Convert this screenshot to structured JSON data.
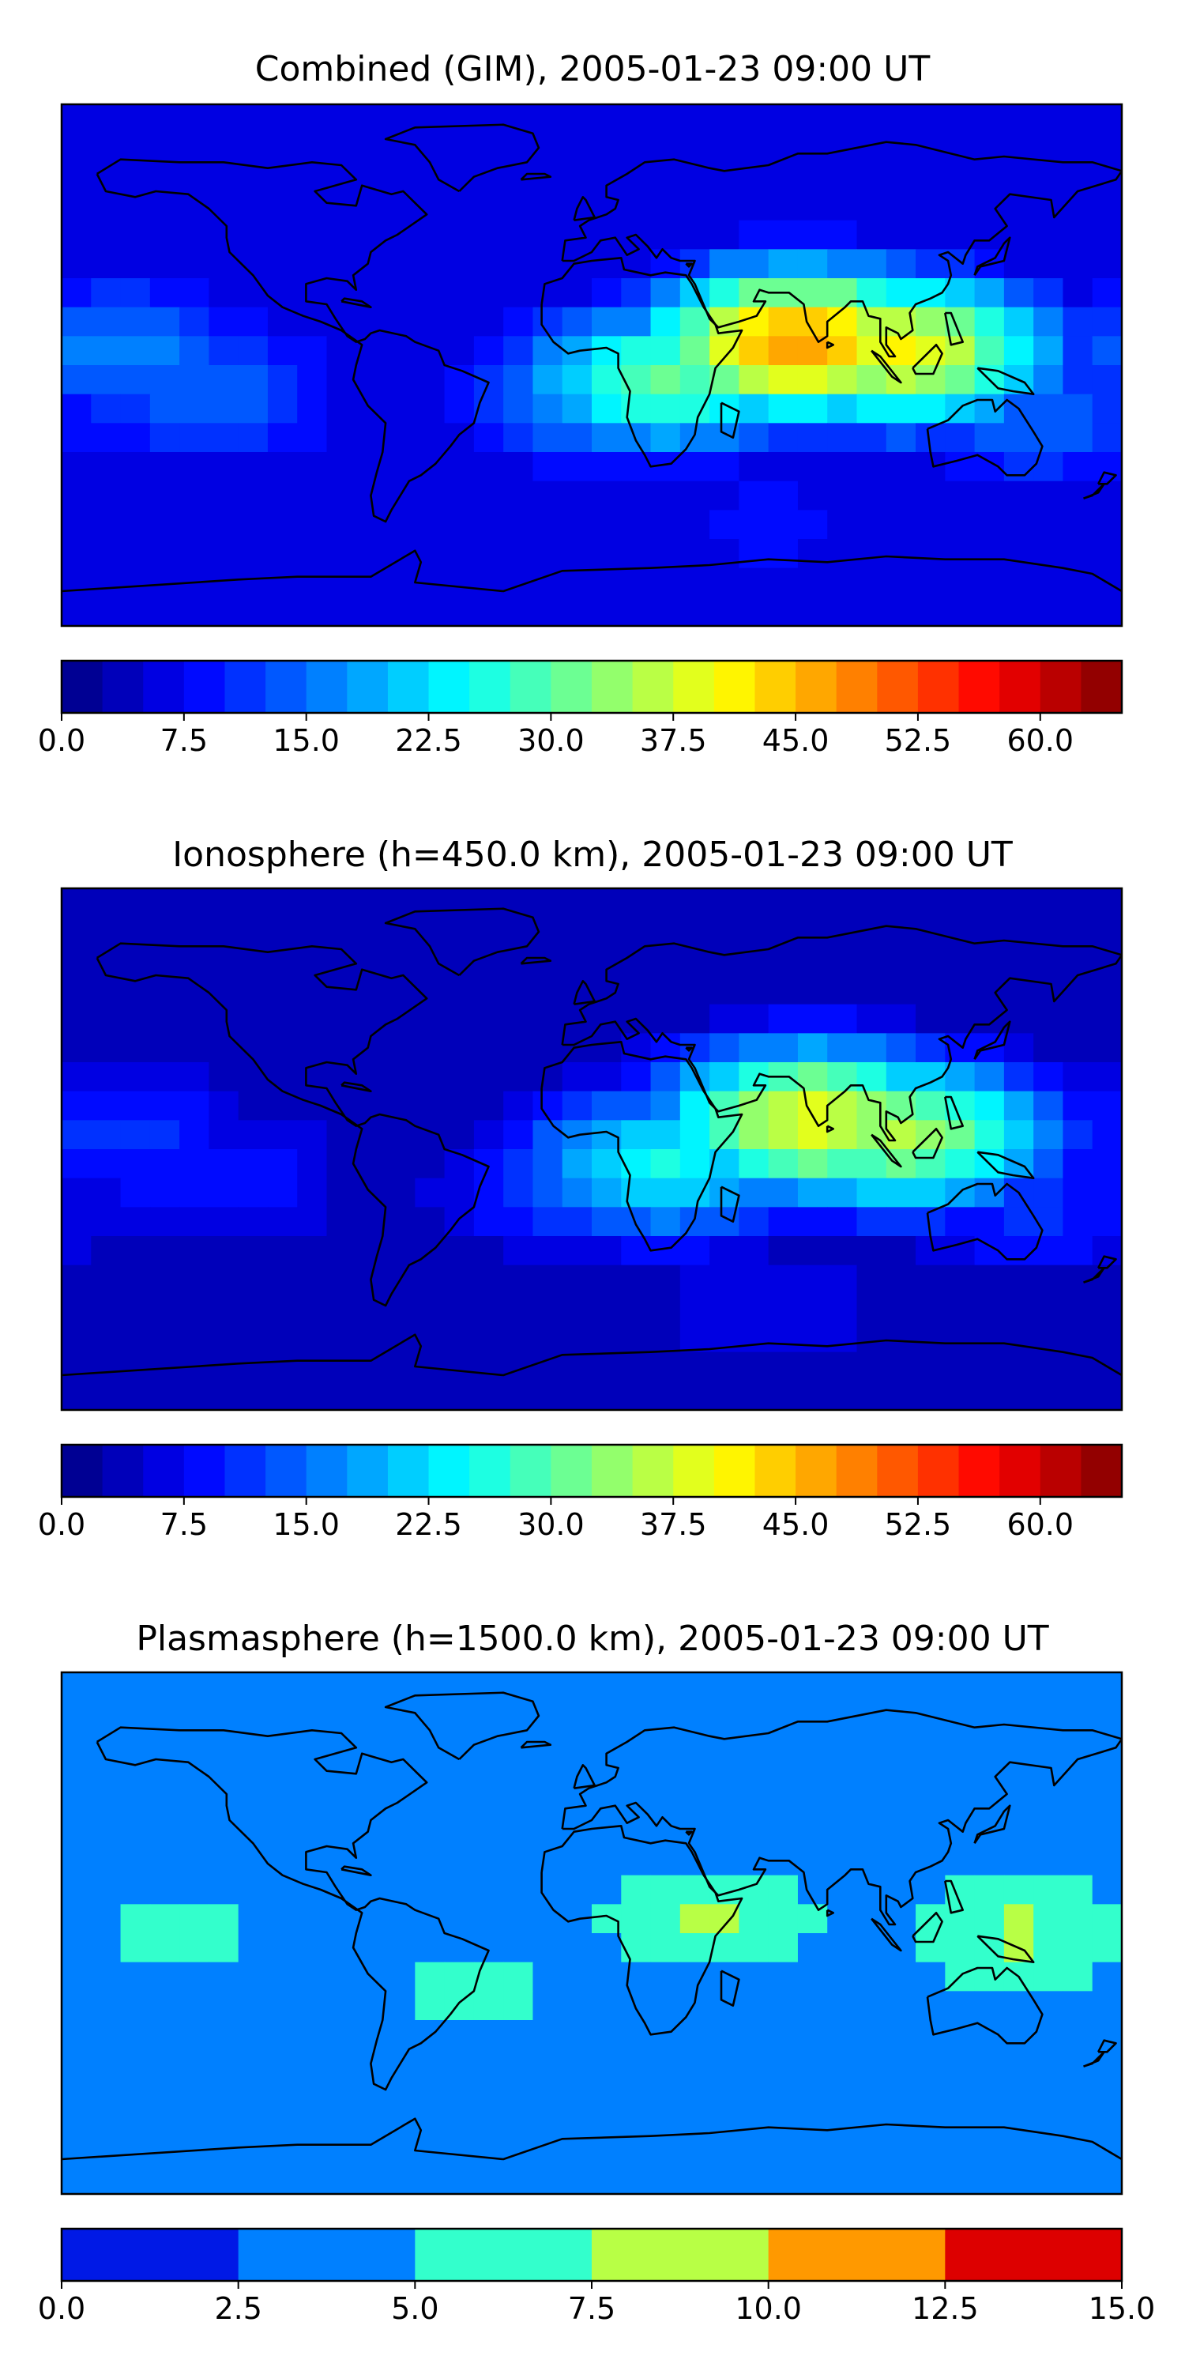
{
  "chart_data": [
    {
      "type": "heatmap",
      "title": "Combined (GIM), 2005-01-23 09:00 UT",
      "zlim": [
        0,
        65
      ],
      "colorbar": {
        "levels": [
          0,
          2.5,
          5,
          7.5,
          10,
          12.5,
          15,
          17.5,
          20,
          22.5,
          25,
          27.5,
          30,
          32.5,
          35,
          37.5,
          40,
          42.5,
          45,
          47.5,
          50,
          52.5,
          55,
          57.5,
          60,
          62.5,
          65
        ],
        "tick_values": [
          0,
          7.5,
          15,
          22.5,
          30,
          37.5,
          45,
          52.5,
          60
        ],
        "tick_labels": [
          "0.0",
          "7.5",
          "15.0",
          "22.5",
          "30.0",
          "37.5",
          "45.0",
          "52.5",
          "60.0"
        ],
        "colormap": "jet"
      },
      "features": [
        {
          "lon": 70,
          "lat": 8,
          "value": 47
        },
        {
          "lon": 105,
          "lat": 5,
          "value": 40
        },
        {
          "lon": 25,
          "lat": -5,
          "value": 30
        },
        {
          "lon": 0,
          "lat": -12,
          "value": 18
        },
        {
          "lon": -160,
          "lat": 5,
          "value": 17
        },
        {
          "lon": -130,
          "lat": -10,
          "value": 15
        },
        {
          "lon": -60,
          "lat": 10,
          "value": 6
        },
        {
          "lon": -100,
          "lat": 45,
          "value": 4
        },
        {
          "lon": 80,
          "lat": 45,
          "value": 6
        },
        {
          "lon": -30,
          "lat": -60,
          "value": 5
        },
        {
          "lon": 60,
          "lat": -55,
          "value": 9
        },
        {
          "lon": 150,
          "lat": -20,
          "value": 14
        }
      ]
    },
    {
      "type": "heatmap",
      "title": "Ionosphere  (h=450.0 km), 2005-01-23 09:00 UT",
      "zlim": [
        0,
        65
      ],
      "colorbar": {
        "levels": [
          0,
          2.5,
          5,
          7.5,
          10,
          12.5,
          15,
          17.5,
          20,
          22.5,
          25,
          27.5,
          30,
          32.5,
          35,
          37.5,
          40,
          42.5,
          45,
          47.5,
          50,
          52.5,
          55,
          57.5,
          60,
          62.5,
          65
        ],
        "tick_values": [
          0,
          7.5,
          15,
          22.5,
          30,
          37.5,
          45,
          52.5,
          60
        ],
        "tick_labels": [
          "0.0",
          "7.5",
          "15.0",
          "22.5",
          "30.0",
          "37.5",
          "45.0",
          "52.5",
          "60.0"
        ],
        "colormap": "jet"
      },
      "features": [
        {
          "lon": 75,
          "lat": 10,
          "value": 40
        },
        {
          "lon": 105,
          "lat": 5,
          "value": 35
        },
        {
          "lon": 25,
          "lat": -5,
          "value": 25
        },
        {
          "lon": 0,
          "lat": -12,
          "value": 14
        },
        {
          "lon": -160,
          "lat": 5,
          "value": 11
        },
        {
          "lon": -130,
          "lat": -10,
          "value": 10
        },
        {
          "lon": -60,
          "lat": 10,
          "value": 2
        },
        {
          "lon": -100,
          "lat": 45,
          "value": 2
        },
        {
          "lon": 80,
          "lat": 45,
          "value": 5
        },
        {
          "lon": -30,
          "lat": -60,
          "value": 3
        },
        {
          "lon": 60,
          "lat": -55,
          "value": 7
        },
        {
          "lon": 150,
          "lat": -20,
          "value": 11
        }
      ]
    },
    {
      "type": "heatmap",
      "title": "Plasmasphere (h=1500.0 km), 2005-01-23 09:00 UT",
      "zlim": [
        0,
        15
      ],
      "colorbar": {
        "levels": [
          0,
          2.5,
          5,
          7.5,
          10,
          12.5,
          15
        ],
        "tick_values": [
          0,
          2.5,
          5,
          7.5,
          10,
          12.5,
          15
        ],
        "tick_labels": [
          "0.0",
          "2.5",
          "5.0",
          "7.5",
          "10.0",
          "12.5",
          "15.0"
        ],
        "colormap": "jet"
      },
      "features": [
        {
          "lon": 40,
          "lat": 5,
          "value": 8
        },
        {
          "lon": 145,
          "lat": 0,
          "value": 8
        },
        {
          "lon": -140,
          "lat": 0,
          "value": 6
        },
        {
          "lon": -40,
          "lat": -20,
          "value": 6
        },
        {
          "lon": 100,
          "lat": -5,
          "value": 2
        },
        {
          "lon": 0,
          "lat": 60,
          "value": 2
        },
        {
          "lon": 0,
          "lat": -80,
          "value": 2
        },
        {
          "lon": -120,
          "lat": -45,
          "value": 2
        }
      ]
    }
  ],
  "colors": {
    "jet": [
      "#00007f",
      "#0000b2",
      "#0000e5",
      "#001aff",
      "#004cff",
      "#007fff",
      "#00b2ff",
      "#00e5ff",
      "#33ffcc",
      "#66ff99",
      "#99ff66",
      "#ccff33",
      "#ffe500",
      "#ffb200",
      "#ff7f00",
      "#ff4c00",
      "#ff1a00",
      "#e50000",
      "#b20000",
      "#7f0000"
    ],
    "plasma": [
      "#0019e6",
      "#0080ff",
      "#33ffcc",
      "#b8ff45",
      "#ff9900",
      "#dd0000"
    ],
    "coastline": "#000000"
  }
}
